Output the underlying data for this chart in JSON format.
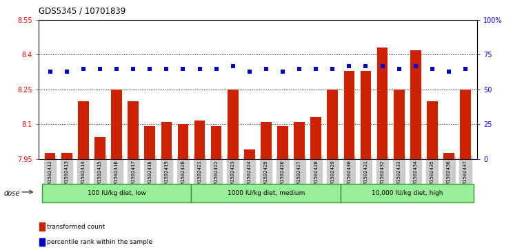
{
  "title": "GDS5345 / 10701839",
  "samples": [
    "GSM1502412",
    "GSM1502413",
    "GSM1502414",
    "GSM1502415",
    "GSM1502416",
    "GSM1502417",
    "GSM1502418",
    "GSM1502419",
    "GSM1502420",
    "GSM1502421",
    "GSM1502422",
    "GSM1502423",
    "GSM1502424",
    "GSM1502425",
    "GSM1502426",
    "GSM1502427",
    "GSM1502428",
    "GSM1502429",
    "GSM1502430",
    "GSM1502431",
    "GSM1502432",
    "GSM1502433",
    "GSM1502434",
    "GSM1502435",
    "GSM1502436",
    "GSM1502437"
  ],
  "bar_values": [
    7.975,
    7.975,
    8.2,
    8.045,
    8.25,
    8.2,
    8.09,
    8.11,
    8.1,
    8.115,
    8.09,
    8.25,
    7.99,
    8.11,
    8.09,
    8.11,
    8.13,
    8.25,
    8.33,
    8.33,
    8.43,
    8.25,
    8.42,
    8.2,
    7.975,
    8.25
  ],
  "blue_values": [
    63,
    63,
    65,
    65,
    65,
    65,
    65,
    65,
    65,
    65,
    65,
    67,
    63,
    65,
    63,
    65,
    65,
    65,
    67,
    67,
    67,
    65,
    67,
    65,
    63,
    65
  ],
  "groups": [
    {
      "label": "100 IU/kg diet, low",
      "start": 0,
      "end": 9,
      "color": "#90EE90"
    },
    {
      "label": "1000 IU/kg diet, medium",
      "start": 9,
      "end": 18,
      "color": "#90EE90"
    },
    {
      "label": "10,000 IU/kg diet, high",
      "start": 18,
      "end": 26,
      "color": "#90EE90"
    }
  ],
  "ymin": 7.95,
  "ymax": 8.55,
  "yticks": [
    7.95,
    8.1,
    8.25,
    8.4,
    8.55
  ],
  "ytick_labels": [
    "7.95",
    "8.1",
    "8.25",
    "8.4",
    "8.55"
  ],
  "y2ticks": [
    0,
    25,
    50,
    75,
    100
  ],
  "y2tick_labels": [
    "0",
    "25",
    "50",
    "75",
    "100%"
  ],
  "bar_color": "#CC2200",
  "blue_color": "#0000CC",
  "grid_lines": [
    8.1,
    8.25,
    8.4
  ],
  "xtick_bg_color": "#CCCCCC",
  "group_border_color": "#339933",
  "group_fill_color": "#99EE99",
  "dose_label": "dose",
  "legend_items": [
    {
      "label": "transformed count",
      "color": "#CC2200"
    },
    {
      "label": "percentile rank within the sample",
      "color": "#0000CC"
    }
  ]
}
